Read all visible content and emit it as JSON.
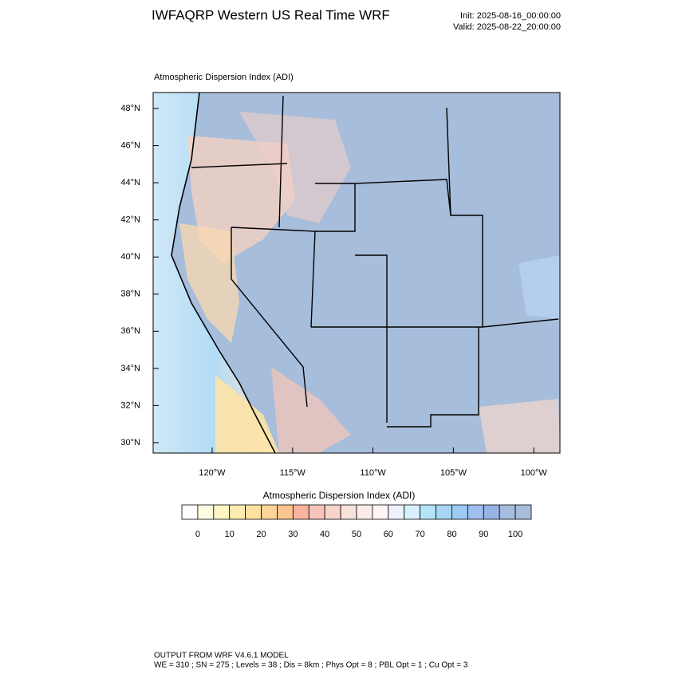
{
  "header": {
    "title": "IWFAQRP Western US Real Time WRF",
    "init": "Init: 2025-08-16_00:00:00",
    "valid": "Valid: 2025-08-22_20:00:00"
  },
  "map": {
    "subtitle": "Atmospheric Dispersion Index   (ADI)",
    "lat_labels": [
      "48°N",
      "46°N",
      "44°N",
      "42°N",
      "40°N",
      "38°N",
      "36°N",
      "34°N",
      "32°N",
      "30°N"
    ],
    "lon_labels": [
      "120°W",
      "115°W",
      "110°W",
      "105°W",
      "100°W"
    ]
  },
  "colorbar": {
    "title": "Atmospheric Dispersion Index  (ADI)",
    "labels": [
      "0",
      "10",
      "20",
      "30",
      "40",
      "50",
      "60",
      "70",
      "80",
      "90",
      "100"
    ],
    "colors": [
      "#ffffff",
      "#fffde0",
      "#fff6c4",
      "#ffecb0",
      "#ffe2a2",
      "#fdd49a",
      "#fbc590",
      "#f8b49e",
      "#f6c4bc",
      "#f7d3cc",
      "#f9e1dc",
      "#fbecea",
      "#fdf5f5",
      "#eef2ff",
      "#d8f0fc",
      "#b4e4f8",
      "#a6d6f4",
      "#9ccaf0",
      "#9ec0ee",
      "#98b4e4",
      "#a6bcde",
      "#a6bddb"
    ]
  },
  "footer": {
    "line1": "OUTPUT FROM WRF V4.6.1 MODEL",
    "line2": "WE = 310 ; SN = 275 ; Levels = 38 ; Dis = 8km ; Phys Opt = 8 ; PBL Opt = 1 ; Cu Opt = 3"
  }
}
